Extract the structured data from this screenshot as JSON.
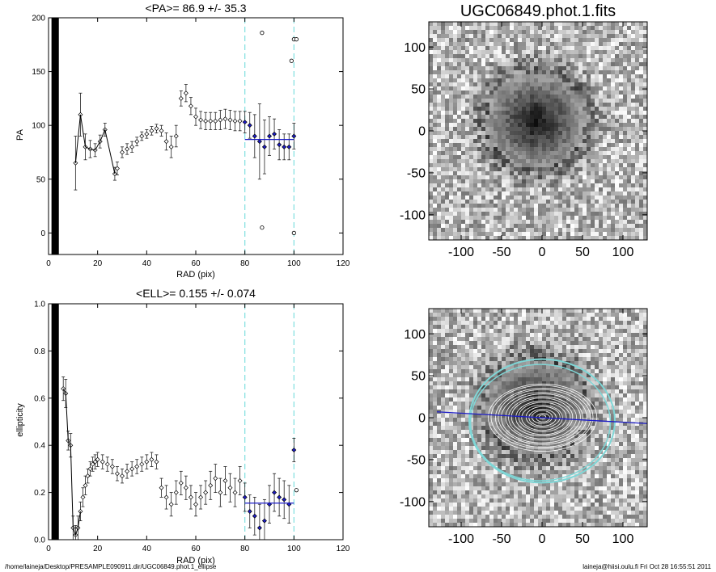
{
  "footer": {
    "path": "/home/laineja/Desktop/PRESAMPLE090911.dir/UGC06849.phot.1_ellipse",
    "stamp": "laineja@hiisi.oulu.fi  Fri Oct 28 16:55:51 2011"
  },
  "colors": {
    "fit_line": "#1c1cc8",
    "marker_lines": "#7fe0e0",
    "ellipses": "#ffffff",
    "outer_ellipse": "#7fd6d6"
  },
  "chart_data": [
    {
      "type": "scatter",
      "title": "<PA>=  86.9 +/-  35.3",
      "xlabel": "RAD (pix)",
      "ylabel": "PA",
      "xlim": [
        0,
        120
      ],
      "ylim": [
        -20,
        200
      ],
      "xticks": [
        "0",
        "20",
        "40",
        "60",
        "80",
        "100",
        "120"
      ],
      "yticks": [
        "0",
        "50",
        "100",
        "150",
        "200"
      ],
      "vlines": [
        80,
        100
      ],
      "mean_line": {
        "x": [
          80,
          100
        ],
        "y": 86.9
      },
      "series": [
        {
          "x": [
            11,
            13,
            15,
            17,
            19,
            21,
            23,
            27,
            28,
            30,
            32,
            34,
            36,
            38,
            40,
            42,
            44,
            46,
            48,
            50,
            52,
            54,
            56,
            58,
            60,
            62,
            64,
            66,
            68,
            70,
            72,
            74,
            76,
            78,
            80,
            82,
            84,
            86,
            88,
            90,
            92,
            94,
            96,
            98,
            100
          ],
          "y": [
            65,
            110,
            80,
            78,
            77,
            85,
            96,
            55,
            60,
            75,
            78,
            80,
            85,
            90,
            92,
            95,
            97,
            95,
            85,
            80,
            90,
            125,
            130,
            118,
            108,
            105,
            104,
            104,
            104,
            105,
            106,
            105,
            104,
            104,
            103,
            100,
            90,
            85,
            80,
            90,
            92,
            82,
            80,
            80,
            90
          ],
          "err": [
            25,
            20,
            12,
            8,
            6,
            6,
            6,
            6,
            6,
            5,
            5,
            5,
            4,
            4,
            4,
            4,
            4,
            5,
            8,
            10,
            10,
            7,
            8,
            8,
            8,
            8,
            8,
            8,
            8,
            9,
            9,
            9,
            9,
            9,
            10,
            12,
            20,
            35,
            25,
            18,
            14,
            14,
            12,
            12,
            12
          ]
        }
      ],
      "outliers": {
        "x": [
          87,
          87,
          99,
          100,
          101,
          100
        ],
        "y": [
          186,
          5,
          160,
          180,
          180,
          0
        ]
      }
    },
    {
      "type": "scatter",
      "title": "<ELL>= 0.155 +/-  0.074",
      "xlabel": "RAD (pix)",
      "ylabel": "ellipticity",
      "xlim": [
        0,
        120
      ],
      "ylim": [
        0,
        1
      ],
      "xticks": [
        "0",
        "20",
        "40",
        "60",
        "80",
        "100",
        "120"
      ],
      "yticks": [
        "0.0",
        "0.2",
        "0.4",
        "0.6",
        "0.8",
        "1.0"
      ],
      "vlines": [
        80,
        100
      ],
      "mean_line": {
        "x": [
          80,
          100
        ],
        "y": 0.155
      },
      "series": [
        {
          "x": [
            6,
            7,
            8,
            9,
            10,
            11,
            12,
            13,
            14,
            15,
            16,
            17,
            18,
            19,
            20,
            22,
            24,
            26,
            28,
            30,
            32,
            34,
            36,
            38,
            40,
            42,
            44,
            46,
            48,
            50,
            52,
            54,
            56,
            58,
            60,
            62,
            64,
            66,
            68,
            70,
            72,
            74,
            76,
            78,
            80,
            82,
            84,
            86,
            88,
            90,
            92,
            94,
            96,
            98,
            100
          ],
          "y": [
            0.64,
            0.62,
            0.42,
            0.4,
            0.05,
            0.02,
            0.05,
            0.12,
            0.18,
            0.23,
            0.27,
            0.3,
            0.32,
            0.33,
            0.34,
            0.33,
            0.32,
            0.31,
            0.28,
            0.27,
            0.29,
            0.3,
            0.31,
            0.32,
            0.33,
            0.34,
            0.33,
            0.22,
            0.18,
            0.15,
            0.2,
            0.24,
            0.22,
            0.18,
            0.15,
            0.18,
            0.2,
            0.23,
            0.26,
            0.2,
            0.25,
            0.22,
            0.2,
            0.25,
            0.18,
            0.12,
            0.1,
            0.05,
            0.08,
            0.15,
            0.2,
            0.18,
            0.17,
            0.15,
            0.38
          ],
          "err": [
            0.05,
            0.06,
            0.04,
            0.05,
            0.05,
            0.04,
            0.05,
            0.04,
            0.04,
            0.04,
            0.03,
            0.03,
            0.03,
            0.03,
            0.03,
            0.03,
            0.03,
            0.03,
            0.03,
            0.03,
            0.03,
            0.03,
            0.03,
            0.03,
            0.03,
            0.03,
            0.03,
            0.04,
            0.05,
            0.05,
            0.05,
            0.05,
            0.05,
            0.05,
            0.05,
            0.05,
            0.05,
            0.06,
            0.06,
            0.06,
            0.06,
            0.06,
            0.06,
            0.06,
            0.06,
            0.07,
            0.08,
            0.1,
            0.09,
            0.08,
            0.08,
            0.08,
            0.08,
            0.08,
            0.05
          ]
        }
      ],
      "outliers": {
        "x": [
          101
        ],
        "y": [
          0.21
        ]
      }
    },
    {
      "type": "heatmap",
      "title": "UGC06849.phot.1.fits",
      "xlim": [
        -140,
        130
      ],
      "ylim": [
        -130,
        130
      ],
      "xticks": [
        "-100",
        "-50",
        "0",
        "50",
        "100"
      ],
      "yticks": [
        "-100",
        "-50",
        "0",
        "50",
        "100"
      ]
    },
    {
      "type": "heatmap",
      "title": "",
      "xlim": [
        -140,
        130
      ],
      "ylim": [
        -130,
        130
      ],
      "xticks": [
        "-100",
        "-50",
        "0",
        "50",
        "100"
      ],
      "yticks": [
        "-100",
        "-50",
        "0",
        "50",
        "100"
      ],
      "outer_ellipse_radius": 90,
      "pa_line": {
        "x": [
          -130,
          130
        ],
        "y": [
          7,
          -7
        ]
      }
    }
  ]
}
